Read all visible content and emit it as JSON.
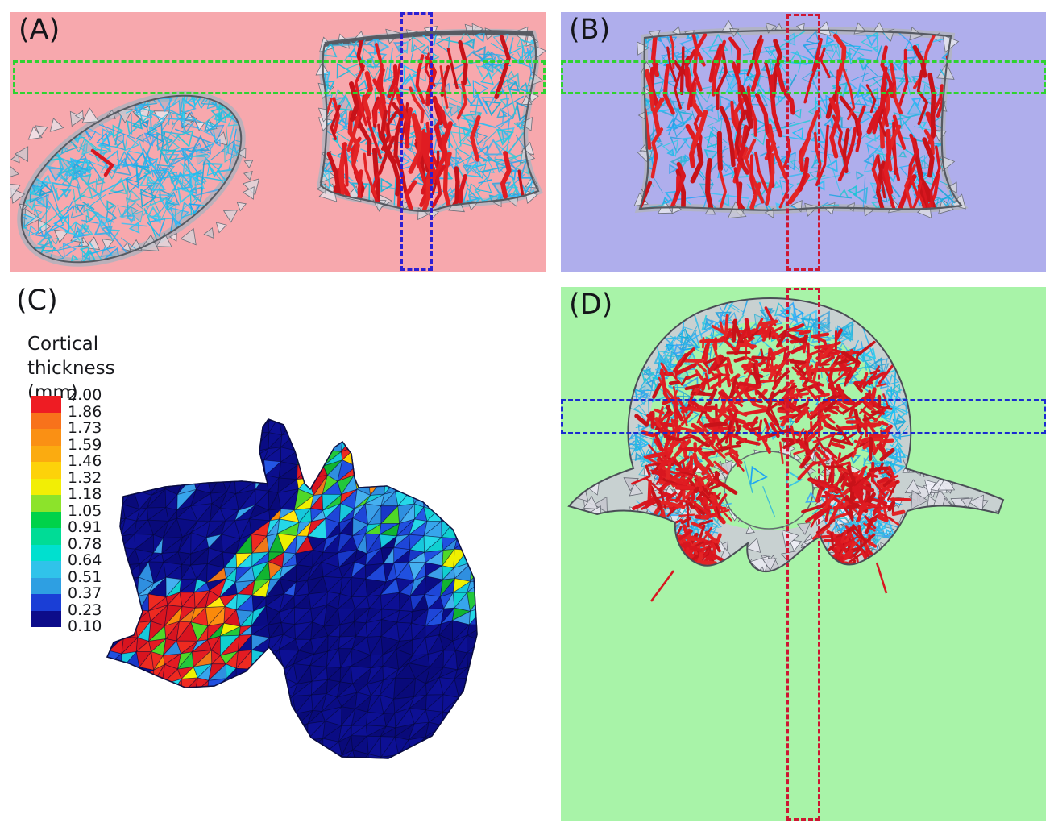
{
  "panels": {
    "a": {
      "label": "(A)",
      "bg": "#f7a8ad"
    },
    "b": {
      "label": "(B)",
      "bg": "#afaeec"
    },
    "c": {
      "label": "(C)",
      "bg": "#ffffff"
    },
    "d": {
      "label": "(D)",
      "bg": "#a8f3a8"
    }
  },
  "legend": {
    "title_line1": "Cortical",
    "title_line2": "thickness (mm)",
    "values": [
      "2.00",
      "1.86",
      "1.73",
      "1.59",
      "1.46",
      "1.32",
      "1.18",
      "1.05",
      "0.91",
      "0.78",
      "0.64",
      "0.51",
      "0.37",
      "0.23",
      "0.10"
    ],
    "segment_colors": [
      "#ee1c23",
      "#f8721b",
      "#fa9014",
      "#fbab10",
      "#fdd20a",
      "#f2ee05",
      "#8ce32b",
      "#00d24a",
      "#00dc96",
      "#00e0cf",
      "#30c3ea",
      "#2e9fe2",
      "#1a3ed6",
      "#0c0c8a"
    ]
  },
  "overlays": {
    "green": "#2ed330",
    "blue_a": "#2c1fd2",
    "red": "#ce1632",
    "blue_d": "#1a2bcf"
  },
  "mesh": {
    "trabecular_cyan": "#23b6e8",
    "strut_red": "#d8161f",
    "shell_gray": "#b3b5bf",
    "shell_edge": "#585c64",
    "cortical_navy": "#0a0c84"
  }
}
